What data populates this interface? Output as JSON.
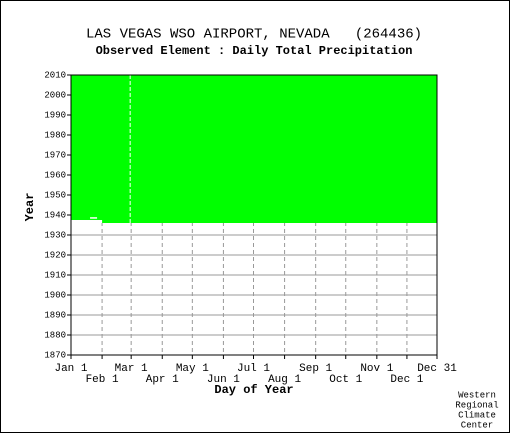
{
  "chart_data": {
    "type": "coverage",
    "title": "LAS VEGAS WSO AIRPORT, NEVADA   (264436)",
    "subtitle": "Observed Element : Daily Total Precipitation",
    "xlabel": "Day of Year",
    "ylabel": "Year",
    "credit": [
      "Western",
      "Regional",
      "Climate",
      "Center"
    ],
    "xlim": [
      1,
      366
    ],
    "xticks": [
      {
        "value": 1,
        "label": "Jan 1"
      },
      {
        "value": 32,
        "label": "Feb 1"
      },
      {
        "value": 61,
        "label": "Mar 1"
      },
      {
        "value": 92,
        "label": "Apr 1"
      },
      {
        "value": 122,
        "label": "May 1"
      },
      {
        "value": 153,
        "label": "Jun 1"
      },
      {
        "value": 183,
        "label": "Jul 1"
      },
      {
        "value": 214,
        "label": "Aug 1"
      },
      {
        "value": 245,
        "label": "Sep 1"
      },
      {
        "value": 275,
        "label": "Oct 1"
      },
      {
        "value": 306,
        "label": "Nov 1"
      },
      {
        "value": 336,
        "label": "Dec 1"
      },
      {
        "value": 366,
        "label": "Dec 31"
      }
    ],
    "ylim": [
      1870,
      2010
    ],
    "yticks": [
      1870,
      1880,
      1890,
      1900,
      1910,
      1920,
      1930,
      1940,
      1950,
      1960,
      1970,
      1980,
      1990,
      2000,
      2010
    ],
    "grid": true,
    "color": "#00ff00",
    "present": [
      {
        "days": [
          1,
          366
        ],
        "years": [
          1936,
          2010
        ]
      }
    ],
    "missing": [
      {
        "days": [
          1,
          32
        ],
        "years": [
          1936,
          1937.5
        ]
      },
      {
        "days": [
          20,
          27
        ],
        "years": [
          1938.3,
          1938.9
        ]
      },
      {
        "days": [
          60,
          60
        ],
        "years": [
          1936,
          2010
        ]
      }
    ]
  }
}
